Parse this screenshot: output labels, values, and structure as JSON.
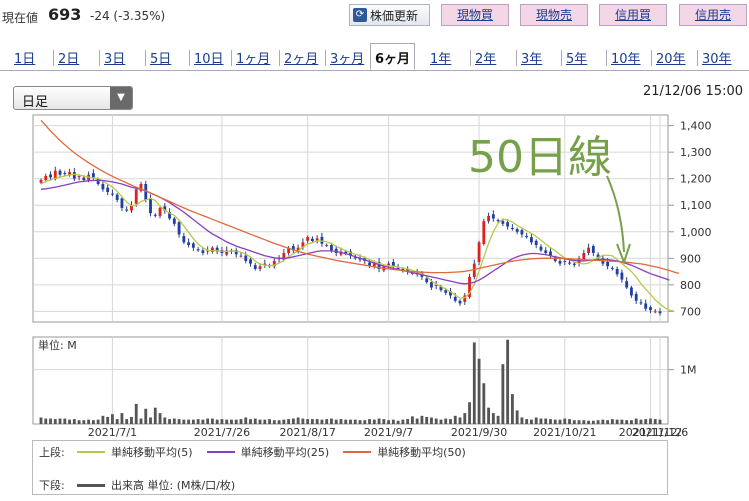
{
  "quote": {
    "label": "現在値",
    "price": "693",
    "change": "-24 (-3.35%)"
  },
  "toolbar": {
    "refresh_label": "株価更新",
    "buttons": [
      "現物買",
      "現物売",
      "信用買",
      "信用売"
    ]
  },
  "tabs": [
    {
      "label": "1日",
      "active": false
    },
    {
      "label": "2日",
      "active": false
    },
    {
      "label": "3日",
      "active": false
    },
    {
      "label": "5日",
      "active": false
    },
    {
      "label": "10日",
      "active": false
    },
    {
      "label": "1ヶ月",
      "active": false
    },
    {
      "label": "2ヶ月",
      "active": false
    },
    {
      "label": "3ヶ月",
      "active": false
    },
    {
      "label": "6ヶ月",
      "active": true
    },
    {
      "label": "1年",
      "active": false
    },
    {
      "label": "2年",
      "active": false
    },
    {
      "label": "3年",
      "active": false
    },
    {
      "label": "5年",
      "active": false
    },
    {
      "label": "10年",
      "active": false
    },
    {
      "label": "20年",
      "active": false
    },
    {
      "label": "30年",
      "active": false
    }
  ],
  "period_select": {
    "value": "日足"
  },
  "timestamp": "21/12/06 15:00",
  "chart_data": [
    {
      "type": "candlestick",
      "title": "",
      "x_tick_labels": [
        "2021/7/1",
        "2021/7/26",
        "2021/8/17",
        "2021/9/7",
        "2021/9/30",
        "2021/10/21",
        "2021/11/12",
        "2021/12/6"
      ],
      "y_tick_labels": [
        "1,400",
        "1,300",
        "1,200",
        "1,100",
        "1,000",
        "900",
        "800",
        "700"
      ],
      "ylim": [
        660,
        1440
      ],
      "grid": true,
      "annotation": "50日線",
      "close": [
        1195,
        1210,
        1205,
        1230,
        1215,
        1220,
        1225,
        1200,
        1210,
        1195,
        1215,
        1205,
        1180,
        1160,
        1150,
        1140,
        1120,
        1090,
        1080,
        1100,
        1160,
        1180,
        1120,
        1070,
        1060,
        1090,
        1080,
        1050,
        1030,
        990,
        960,
        950,
        940,
        930,
        920,
        930,
        940,
        925,
        920,
        930,
        925,
        915,
        910,
        890,
        880,
        860,
        870,
        880,
        870,
        890,
        900,
        920,
        940,
        930,
        940,
        960,
        980,
        965,
        975,
        955,
        950,
        930,
        920,
        925,
        920,
        910,
        900,
        895,
        890,
        870,
        880,
        860,
        870,
        880,
        870,
        860,
        855,
        850,
        845,
        840,
        830,
        810,
        790,
        800,
        780,
        770,
        760,
        740,
        730,
        760,
        830,
        880,
        960,
        1040,
        1060,
        1050,
        1040,
        1030,
        1020,
        1010,
        1000,
        990,
        980,
        960,
        950,
        930,
        920,
        910,
        890,
        880,
        890,
        880,
        875,
        900,
        920,
        940,
        920,
        900,
        880,
        870,
        860,
        840,
        820,
        790,
        760,
        740,
        730,
        710,
        705,
        700,
        693
      ],
      "series": [
        {
          "name": "単純移動平均(5)",
          "color": "#b8c94a",
          "values": [
            1180,
            1190,
            1195,
            1202,
            1206,
            1210,
            1214,
            1216,
            1214,
            1210,
            1206,
            1203,
            1201,
            1191,
            1180,
            1169,
            1153,
            1132,
            1112,
            1098,
            1100,
            1114,
            1120,
            1126,
            1118,
            1096,
            1082,
            1070,
            1062,
            1044,
            1022,
            998,
            974,
            954,
            940,
            930,
            928,
            929,
            927,
            926,
            928,
            927,
            923,
            916,
            905,
            889,
            879,
            874,
            872,
            874,
            882,
            892,
            906,
            918,
            928,
            942,
            954,
            959,
            966,
            965,
            963,
            955,
            945,
            937,
            929,
            921,
            915,
            910,
            903,
            895,
            888,
            881,
            876,
            872,
            870,
            867,
            863,
            860,
            854,
            850,
            842,
            831,
            815,
            803,
            794,
            784,
            774,
            761,
            750,
            752,
            768,
            802,
            852,
            904,
            956,
            1000,
            1032,
            1048,
            1044,
            1036,
            1024,
            1014,
            1004,
            994,
            982,
            968,
            954,
            940,
            928,
            914,
            902,
            894,
            886,
            881,
            879,
            882,
            892,
            903,
            911,
            912,
            909,
            895,
            880,
            866,
            850,
            830,
            804,
            784,
            764,
            744,
            728,
            714,
            705,
            701
          ]
        },
        {
          "name": "単純移動平均(25)",
          "color": "#8a3fc0",
          "values": [
            1160,
            1162,
            1165,
            1168,
            1172,
            1176,
            1180,
            1184,
            1188,
            1190,
            1192,
            1193,
            1194,
            1193,
            1191,
            1188,
            1184,
            1180,
            1174,
            1168,
            1164,
            1160,
            1154,
            1146,
            1138,
            1130,
            1120,
            1110,
            1098,
            1086,
            1074,
            1060,
            1046,
            1032,
            1018,
            1004,
            992,
            982,
            972,
            962,
            954,
            946,
            940,
            934,
            928,
            922,
            916,
            910,
            906,
            902,
            900,
            900,
            902,
            906,
            910,
            914,
            918,
            922,
            926,
            928,
            928,
            928,
            926,
            922,
            918,
            912,
            906,
            900,
            894,
            888,
            882,
            876,
            870,
            866,
            862,
            858,
            854,
            850,
            846,
            842,
            838,
            834,
            830,
            826,
            822,
            818,
            814,
            810,
            806,
            804,
            806,
            810,
            818,
            828,
            840,
            852,
            864,
            876,
            888,
            898,
            906,
            912,
            916,
            918,
            918,
            916,
            914,
            910,
            906,
            902,
            898,
            895,
            892,
            890,
            890,
            892,
            894,
            895,
            896,
            895,
            893,
            890,
            886,
            880,
            874,
            866,
            858,
            850,
            842,
            836,
            830,
            824,
            818
          ]
        },
        {
          "name": "単純移動平均(50)",
          "color": "#e06a3c",
          "values": [
            1420,
            1400,
            1380,
            1362,
            1344,
            1328,
            1312,
            1298,
            1284,
            1272,
            1260,
            1249,
            1238,
            1228,
            1218,
            1209,
            1200,
            1192,
            1184,
            1176,
            1168,
            1161,
            1154,
            1146,
            1138,
            1130,
            1122,
            1114,
            1106,
            1098,
            1090,
            1082,
            1075,
            1068,
            1061,
            1054,
            1047,
            1040,
            1033,
            1026,
            1019,
            1012,
            1005,
            998,
            991,
            984,
            977,
            970,
            963,
            956,
            950,
            944,
            938,
            932,
            926,
            921,
            916,
            912,
            908,
            904,
            900,
            896,
            892,
            889,
            886,
            883,
            880,
            877,
            874,
            871,
            868,
            865,
            862,
            860,
            858,
            856,
            854,
            852,
            850,
            849,
            848,
            847,
            846,
            846,
            846,
            846,
            847,
            848,
            849,
            851,
            854,
            858,
            862,
            866,
            870,
            874,
            878,
            882,
            886,
            889,
            892,
            894,
            896,
            898,
            899,
            900,
            900,
            900,
            900,
            900,
            899,
            898,
            897,
            896,
            895,
            894,
            893,
            892,
            891,
            890,
            889,
            888,
            887,
            885,
            883,
            881,
            879,
            876,
            872,
            868,
            864,
            859,
            854,
            848,
            843
          ]
        }
      ]
    },
    {
      "type": "bar",
      "title": "",
      "unit_label": "単位: M",
      "y_tick_labels": [
        "1M"
      ],
      "ylim": [
        0,
        1.6
      ],
      "series": [
        {
          "name": "出来高 単位: (M株/口/枚)",
          "color": "#555555",
          "values": [
            0.12,
            0.1,
            0.1,
            0.09,
            0.1,
            0.1,
            0.08,
            0.09,
            0.07,
            0.07,
            0.08,
            0.07,
            0.08,
            0.15,
            0.13,
            0.18,
            0.09,
            0.2,
            0.09,
            0.13,
            0.37,
            0.1,
            0.28,
            0.12,
            0.3,
            0.2,
            0.12,
            0.09,
            0.1,
            0.09,
            0.08,
            0.08,
            0.08,
            0.09,
            0.08,
            0.1,
            0.1,
            0.08,
            0.09,
            0.08,
            0.08,
            0.08,
            0.09,
            0.12,
            0.09,
            0.1,
            0.08,
            0.08,
            0.09,
            0.07,
            0.07,
            0.08,
            0.09,
            0.1,
            0.12,
            0.1,
            0.09,
            0.09,
            0.09,
            0.08,
            0.09,
            0.1,
            0.08,
            0.09,
            0.08,
            0.08,
            0.08,
            0.07,
            0.07,
            0.09,
            0.08,
            0.1,
            0.09,
            0.07,
            0.08,
            0.06,
            0.08,
            0.09,
            0.14,
            0.1,
            0.15,
            0.13,
            0.12,
            0.1,
            0.08,
            0.1,
            0.09,
            0.15,
            0.12,
            0.2,
            0.4,
            1.5,
            1.2,
            0.75,
            0.3,
            0.2,
            0.15,
            1.1,
            1.55,
            0.55,
            0.25,
            0.12,
            0.09,
            0.08,
            0.12,
            0.1,
            0.1,
            0.09,
            0.08,
            0.08,
            0.1,
            0.09,
            0.07,
            0.07,
            0.07,
            0.06,
            0.06,
            0.07,
            0.08,
            0.07,
            0.09,
            0.08,
            0.08,
            0.07,
            0.07,
            0.1,
            0.08,
            0.09,
            0.1,
            0.09,
            0.08,
            0.1,
            0.1,
            0.09,
            0.09,
            0.08
          ]
        }
      ]
    }
  ],
  "legend": {
    "upper_label": "上段:",
    "lower_label": "下段:",
    "upper_items": [
      {
        "label": "単純移動平均(5)",
        "color": "#b8c94a"
      },
      {
        "label": "単純移動平均(25)",
        "color": "#8a3fc0"
      },
      {
        "label": "単純移動平均(50)",
        "color": "#e06a3c"
      }
    ],
    "lower_items": [
      {
        "label": "出来高 単位: (M株/口/枚)",
        "color": "#555555"
      }
    ]
  }
}
